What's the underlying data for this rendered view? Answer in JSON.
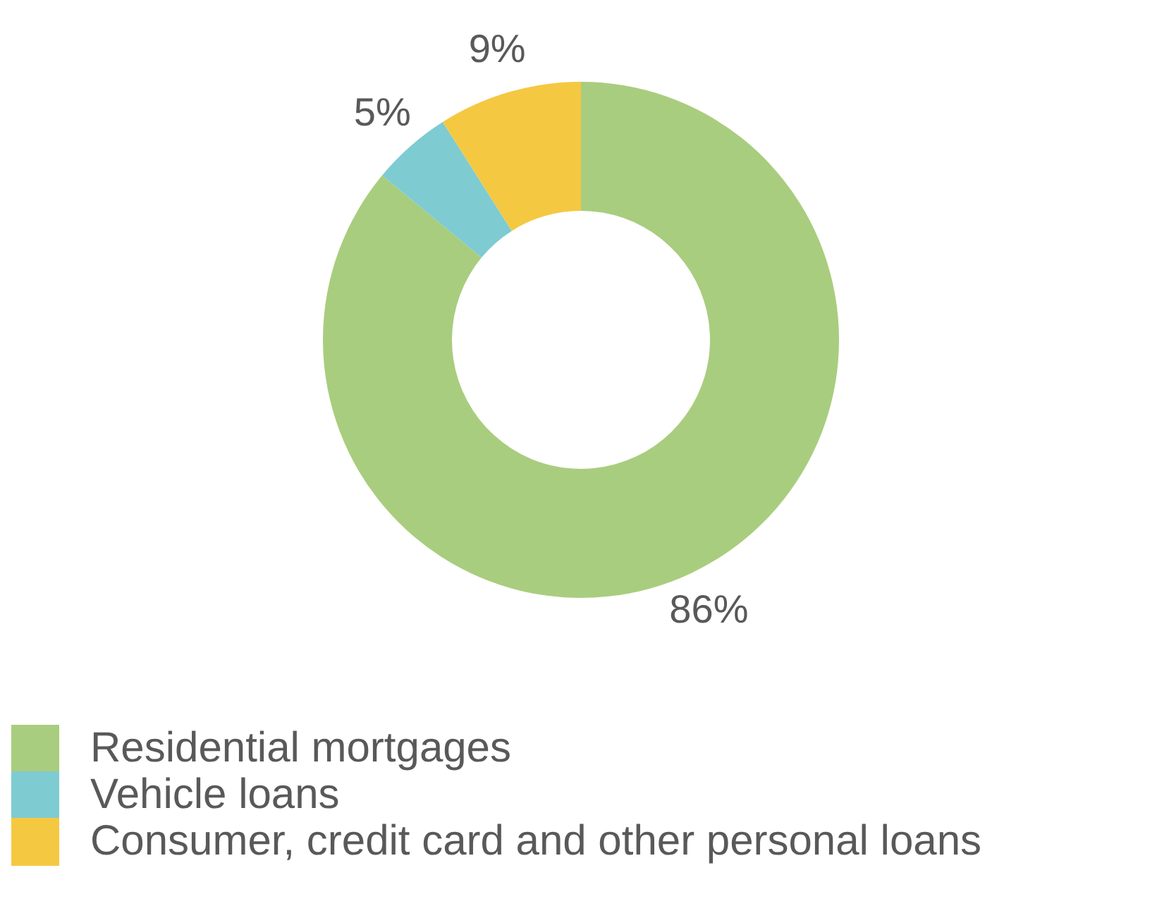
{
  "chart_data": {
    "type": "donut",
    "categories": [
      "Residential mortgages",
      "Vehicle loans",
      "Consumer, credit card and other personal loans"
    ],
    "values": [
      86,
      5,
      9
    ],
    "colors": [
      "#a9cd7e",
      "#7ecbd2",
      "#f5c842"
    ],
    "value_labels": [
      "86%",
      "5%",
      "9%"
    ],
    "legend": "bottom left"
  }
}
